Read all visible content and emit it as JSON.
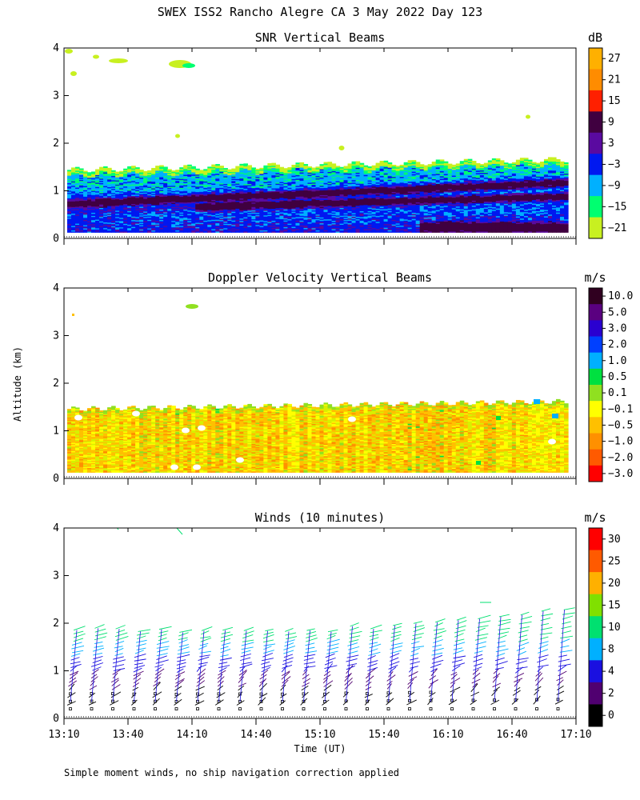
{
  "figure_title": "SWEX ISS2 Rancho Alegre CA   3 May 2022 Day 123",
  "y_axis_label": "Altitude (km)",
  "x_axis_label": "Time (UT)",
  "footnote": "Simple moment winds, no ship navigation correction applied",
  "chart_data": [
    {
      "type": "heatmap",
      "title": "SNR Vertical Beams",
      "unit": "dB",
      "ylim": [
        0,
        4
      ],
      "yticks": [
        "0",
        "1",
        "2",
        "3",
        "4"
      ],
      "colorbar": {
        "labels": [
          "27",
          "21",
          "15",
          "9",
          "3",
          "−3",
          "−9",
          "−15",
          "−21"
        ],
        "colors": [
          "#ffb000",
          "#ff8c00",
          "#ff2000",
          "#400040",
          "#5a0aa0",
          "#0018f0",
          "#00b0ff",
          "#00ff70",
          "#c8f020"
        ]
      }
    },
    {
      "type": "heatmap",
      "title": "Doppler Velocity Vertical Beams",
      "unit": "m/s",
      "ylim": [
        0,
        4
      ],
      "yticks": [
        "0",
        "1",
        "2",
        "3",
        "4"
      ],
      "colorbar": {
        "labels": [
          "10.0",
          "5.0",
          "3.0",
          "2.0",
          "1.0",
          "0.5",
          "0.1",
          "−0.1",
          "−0.5",
          "−1.0",
          "−2.0",
          "−3.0"
        ],
        "colors": [
          "#300020",
          "#5a0080",
          "#2a00d0",
          "#0040ff",
          "#00b0ff",
          "#00e040",
          "#90e020",
          "#ffff00",
          "#ffc000",
          "#ff9000",
          "#ff5a00",
          "#ff0000"
        ]
      }
    },
    {
      "type": "scatter",
      "title": "Winds (10 minutes)",
      "unit": "m/s",
      "ylim": [
        0,
        4
      ],
      "yticks": [
        "0",
        "1",
        "2",
        "3",
        "4"
      ],
      "xticks": [
        "13:10",
        "13:40",
        "14:10",
        "14:40",
        "15:10",
        "15:40",
        "16:10",
        "16:40",
        "17:10"
      ],
      "colorbar": {
        "labels": [
          "30",
          "25",
          "20",
          "15",
          "10",
          "8",
          "4",
          "2",
          "0"
        ],
        "colors": [
          "#ff0000",
          "#ff5a00",
          "#ffb000",
          "#80e000",
          "#00e070",
          "#00b0ff",
          "#1a10e0",
          "#500070",
          "#000000"
        ]
      }
    }
  ]
}
